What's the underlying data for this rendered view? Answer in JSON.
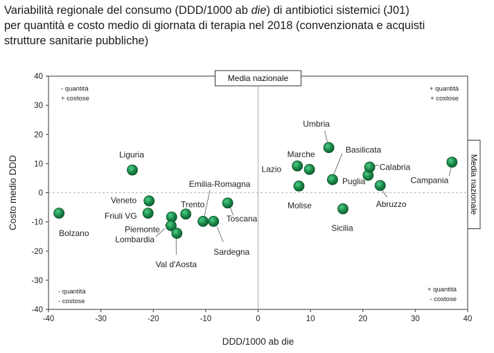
{
  "title": {
    "line1_before": "Variabilità regionale del consumo (DDD/1000 ab ",
    "line1_italic": "die",
    "line1_after": ") di antibiotici sistemici (J01)",
    "line2": "per quantità e costo medio di giornata di terapia nel 2018 (convenzionata e acquisti",
    "line3": "strutture sanitarie pubbliche)"
  },
  "chart_data": {
    "type": "scatter",
    "xlabel": "DDD/1000 ab die",
    "ylabel": "Costo medio DDD",
    "xlim": [
      -40,
      40
    ],
    "ylim": [
      -40,
      40
    ],
    "xticks": [
      -40,
      -30,
      -20,
      -10,
      0,
      10,
      20,
      30,
      40
    ],
    "yticks": [
      -40,
      -30,
      -20,
      -10,
      0,
      10,
      20,
      30,
      40
    ],
    "grid": false,
    "reference_lines": {
      "vertical_label": "Media nazionale",
      "horizontal_label": "Media nazionale"
    },
    "marker_color": "#1b8a4a",
    "points": [
      {
        "name": "Bolzano",
        "x": -38.0,
        "y": -7.0
      },
      {
        "name": "Liguria",
        "x": -24.0,
        "y": 7.8
      },
      {
        "name": "Veneto",
        "x": -20.8,
        "y": -2.8
      },
      {
        "name": "Friuli VG",
        "x": -21.0,
        "y": -7.0
      },
      {
        "name": "Piemonte",
        "x": -16.5,
        "y": -8.3
      },
      {
        "name": "Lombardia",
        "x": -16.6,
        "y": -11.3
      },
      {
        "name": "Val d'Aosta",
        "x": -15.5,
        "y": -13.9
      },
      {
        "name": "Trento",
        "x": -13.8,
        "y": -7.3
      },
      {
        "name": "Emilia-Romagna",
        "x": -10.5,
        "y": -9.8
      },
      {
        "name": "Sardegna",
        "x": -8.5,
        "y": -9.8
      },
      {
        "name": "Toscana",
        "x": -5.8,
        "y": -3.5
      },
      {
        "name": "Lazio",
        "x": 7.5,
        "y": 9.2
      },
      {
        "name": "Marche",
        "x": 9.8,
        "y": 8.0
      },
      {
        "name": "Molise",
        "x": 7.8,
        "y": 2.3
      },
      {
        "name": "Umbria",
        "x": 13.5,
        "y": 15.5
      },
      {
        "name": "Basilicata",
        "x": 14.2,
        "y": 4.5
      },
      {
        "name": "Sicilia",
        "x": 16.2,
        "y": -5.5
      },
      {
        "name": "Puglia",
        "x": 21.0,
        "y": 6.0
      },
      {
        "name": "Calabria",
        "x": 21.3,
        "y": 8.8
      },
      {
        "name": "Abruzzo",
        "x": 23.3,
        "y": 2.5
      },
      {
        "name": "Campania",
        "x": 37.0,
        "y": 10.5
      }
    ],
    "quadrant_labels": {
      "top_left": [
        "- quantità",
        "+ costose"
      ],
      "top_right": [
        "+ quantità",
        "+ costose"
      ],
      "bottom_left": [
        "- quantità",
        "- costose"
      ],
      "bottom_right": [
        "+ quantità",
        "- costose"
      ]
    }
  }
}
